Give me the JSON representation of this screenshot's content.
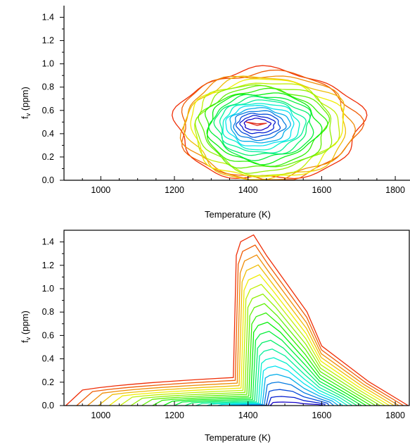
{
  "chart_data": [
    {
      "type": "contour",
      "xlabel": "Temperature (K)",
      "ylabel_main": "f",
      "ylabel_sub": "v",
      "ylabel_unit": " (ppm)",
      "xlim": [
        900,
        1840
      ],
      "ylim": [
        0,
        1.5
      ],
      "xticks_major": [
        1000,
        1200,
        1400,
        1600,
        1800
      ],
      "xtick_labels": [
        "1000",
        "1200",
        "1400",
        "1600",
        "1800"
      ],
      "xticks_minor": [
        900,
        950,
        1050,
        1100,
        1150,
        1250,
        1300,
        1350,
        1450,
        1500,
        1550,
        1650,
        1700,
        1750
      ],
      "yticks_major": [
        0.0,
        0.2,
        0.4,
        0.6,
        0.8,
        1.0,
        1.2,
        1.4
      ],
      "ytick_labels": [
        "0.0",
        "0.2",
        "0.4",
        "0.6",
        "0.8",
        "1.0",
        "1.2",
        "1.4"
      ],
      "yticks_minor": [
        0.1,
        0.3,
        0.5,
        0.7,
        0.9,
        1.1,
        1.3
      ],
      "frame": "axes only (left and bottom)",
      "peak": {
        "x": 1420,
        "y": 0.48
      },
      "levels": 20
    },
    {
      "type": "contour",
      "xlabel": "Temperature (K)",
      "ylabel_main": "f",
      "ylabel_sub": "v",
      "ylabel_unit": " (ppm)",
      "xlim": [
        900,
        1840
      ],
      "ylim": [
        0,
        1.5
      ],
      "xticks_major": [
        1000,
        1200,
        1400,
        1600,
        1800
      ],
      "xtick_labels": [
        "1000",
        "1200",
        "1400",
        "1600",
        "1800"
      ],
      "xticks_minor": [
        900,
        950,
        1050,
        1100,
        1150,
        1250,
        1300,
        1350,
        1450,
        1500,
        1550,
        1650,
        1700,
        1750
      ],
      "yticks_major": [
        0.0,
        0.2,
        0.4,
        0.6,
        0.8,
        1.0,
        1.2,
        1.4
      ],
      "ytick_labels": [
        "0.0",
        "0.2",
        "0.4",
        "0.6",
        "0.8",
        "1.0",
        "1.2",
        "1.4"
      ],
      "yticks_minor": [
        0.1,
        0.3,
        0.5,
        0.7,
        0.9,
        1.1,
        1.3
      ],
      "frame": "full box",
      "peak": {
        "x": 1530,
        "y": 0.04
      },
      "levels": 20
    }
  ]
}
